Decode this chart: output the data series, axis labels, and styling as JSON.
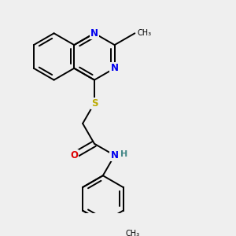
{
  "background_color": "#efefef",
  "atom_colors": {
    "N": "#0000ee",
    "O": "#dd0000",
    "S": "#bbaa00",
    "C": "#000000",
    "H": "#448888"
  },
  "bond_color": "#000000",
  "bond_lw": 1.4,
  "font_size": 8.5,
  "fig_size": [
    3.0,
    3.0
  ],
  "dpi": 100
}
